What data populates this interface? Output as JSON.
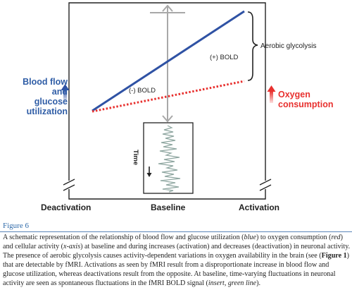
{
  "figure": {
    "label_blood_flow": [
      "Blood flow",
      "and",
      "glucose",
      "utilization"
    ],
    "label_oxygen": [
      "Oxygen",
      "consumption"
    ],
    "label_aerobic": "Aerobic glycolysis",
    "label_pos_bold": "(+) BOLD",
    "label_neg_bold": "(-) BOLD",
    "label_time": "Time",
    "x_labels": {
      "deactivation": "Deactivation",
      "baseline": "Baseline",
      "activation": "Activation"
    },
    "colors": {
      "blood_flow": "#2f52a4",
      "oxygen": "#e8312f",
      "baseline_axis": "#a8a8a8",
      "fluctuation": "#8ea6a0",
      "title": "#2f6aa9"
    }
  },
  "caption": {
    "title": "Figure 6",
    "p1": "A schematic representation of the relationship of blood flow and glucose utilization (",
    "blue": "blue",
    "p2": ") to oxygen consumption (",
    "red": "red",
    "p3": ") and cellular activity (",
    "xaxis": "x-axis",
    "p4": ") at baseline and during increases (activation) and decreases (deactivation) in neuronal activity. The presence of aerobic glycolysis causes activity-dependent variations in oxygen availability in the brain (see (",
    "see_fig": "Figure 1",
    "p5": ") that are detectable by fMRI. Activations as seen by fMRI result from a disproportionate increase in blood flow and glucose utilization, whereas deactivations result from the opposite. At baseline, time-varying fluctuations in neuronal activity are seen as spontaneous fluctuations in the fMRI BOLD signal (",
    "insert": "insert",
    "p6": ", ",
    "green": "green line",
    "p7": ")."
  }
}
